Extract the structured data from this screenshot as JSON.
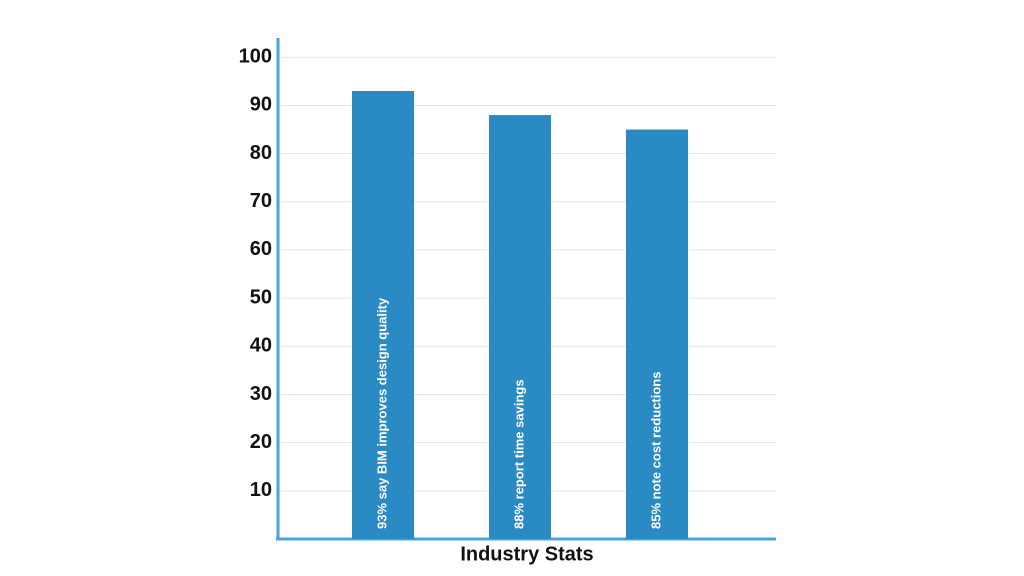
{
  "chart_data": {
    "type": "bar",
    "x_label": "Industry Stats",
    "categories": [
      null,
      null,
      null
    ],
    "values": [
      93,
      88,
      85
    ],
    "value_labels": [
      "93% say BIM improves design quality",
      "88% report time savings",
      "85% note cost reductions"
    ],
    "color": "#2a8ac4",
    "axis_color": "#4aa3df",
    "ylim": [
      0,
      104
    ],
    "yticks": [
      10,
      20,
      30,
      40,
      50,
      60,
      70,
      80,
      90,
      100
    ],
    "grid": true
  }
}
